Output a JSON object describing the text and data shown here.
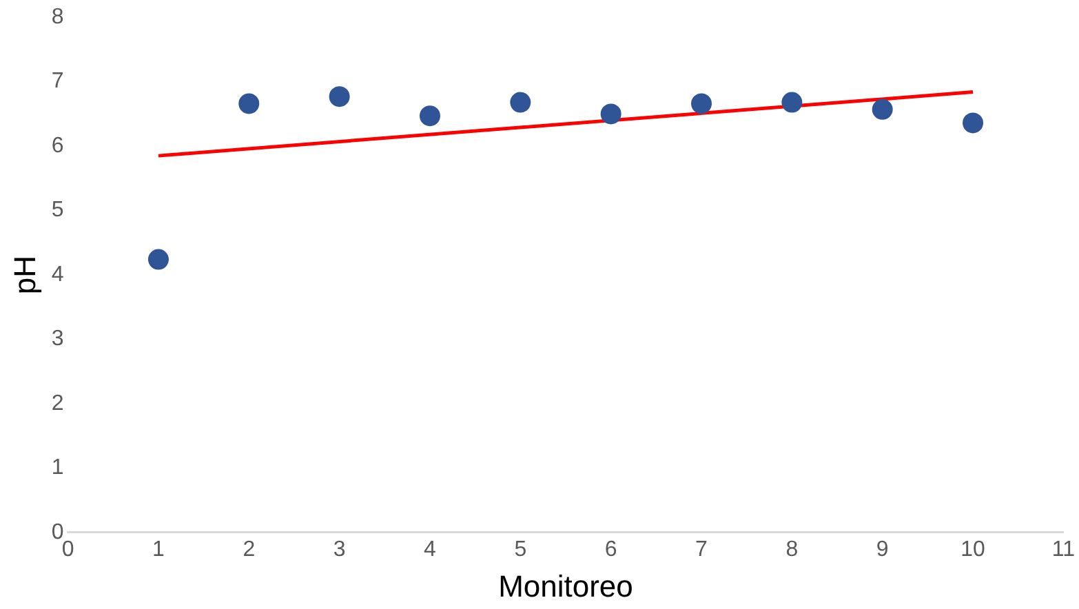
{
  "chart_data": {
    "type": "scatter",
    "xlabel": "Monitoreo",
    "ylabel": "pH",
    "xlim": [
      0,
      11
    ],
    "xticks": [
      0,
      1,
      2,
      3,
      4,
      5,
      6,
      7,
      8,
      9,
      10,
      11
    ],
    "ylim": [
      0,
      8
    ],
    "yticks": [
      0,
      1,
      2,
      3,
      4,
      5,
      6,
      7,
      8
    ],
    "grid": false,
    "legend": false,
    "series": [
      {
        "type": "scatter",
        "marker": "circle",
        "color": "#2f5597",
        "x": [
          1,
          2,
          3,
          4,
          5,
          6,
          7,
          8,
          9,
          10
        ],
        "values": [
          4.24,
          6.66,
          6.77,
          6.47,
          6.68,
          6.5,
          6.66,
          6.68,
          6.57,
          6.36
        ]
      },
      {
        "type": "line",
        "color": "#ff0000",
        "x": [
          1,
          10
        ],
        "values": [
          5.85,
          6.84
        ]
      }
    ]
  }
}
